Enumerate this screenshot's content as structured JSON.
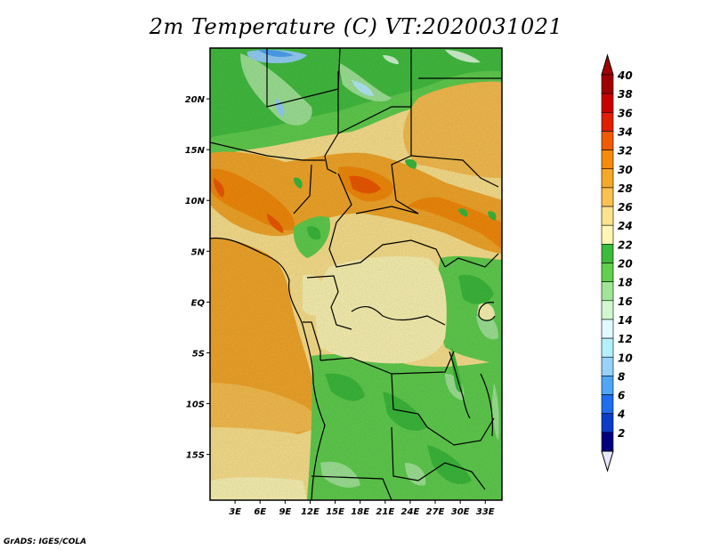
{
  "title": "2m Temperature (C) VT:2020031021",
  "credit": "GrADS: IGES/COLA",
  "map": {
    "lon_ticks": [
      "3E",
      "6E",
      "9E",
      "12E",
      "15E",
      "18E",
      "21E",
      "24E",
      "27E",
      "30E",
      "33E"
    ],
    "lat_ticks": [
      "20N",
      "15N",
      "10N",
      "5N",
      "EQ",
      "5S",
      "10S",
      "15S"
    ],
    "lon_range": [
      0,
      35
    ],
    "lat_range": [
      -19.5,
      25
    ]
  },
  "colorbar": {
    "labels": [
      "40",
      "38",
      "36",
      "34",
      "32",
      "30",
      "28",
      "26",
      "24",
      "22",
      "20",
      "18",
      "16",
      "14",
      "12",
      "10",
      "8",
      "6",
      "4",
      "2"
    ],
    "colors": [
      "#a00000",
      "#c80000",
      "#e01e00",
      "#f05a00",
      "#f58c0a",
      "#f5a82a",
      "#fac050",
      "#fde38e",
      "#fef6b4",
      "#3cbb3c",
      "#61d04f",
      "#a0e696",
      "#d2f7d0",
      "#e1f9ff",
      "#b4f0fa",
      "#96d2fa",
      "#50a5f5",
      "#1e6ef0",
      "#0a3cc8",
      "#000080"
    ],
    "under_color": "#e6e6ff",
    "over_color": "#a00000"
  }
}
